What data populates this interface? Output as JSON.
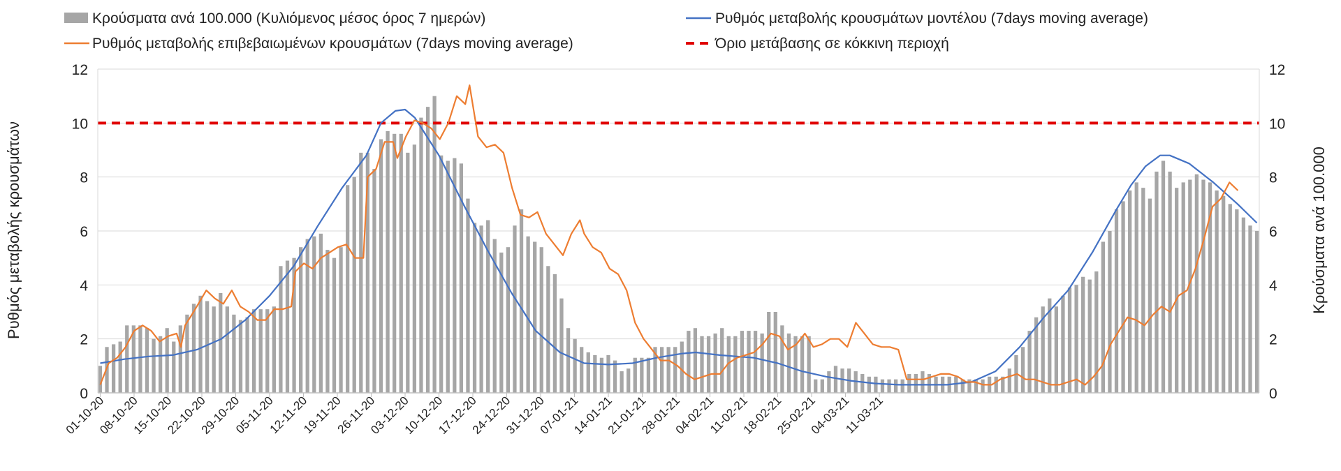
{
  "chart_data": {
    "type": "bar",
    "legend": {
      "bars": "Κρούσματα ανά 100.000 (Κυλιόμενος μέσος όρος 7 ημερών)",
      "model_line": "Ρυθμός μεταβολής κρουσμάτων μοντέλου (7days moving average)",
      "confirmed_line": "Ρυθμός μεταβολής επιβεβαιωμένων κρουσμάτων (7days moving average)",
      "threshold": "Όριο μετάβασης σε κόκκινη περιοχή",
      "placement": "top"
    },
    "ylabel_left": "Ρυθμός μεταβολής κρουσμάτων",
    "ylabel_right": "Κρούσματα ανά 100.000",
    "ylim": [
      0,
      12
    ],
    "yticks": [
      "0",
      "2",
      "4",
      "6",
      "8",
      "10",
      "12"
    ],
    "grid": true,
    "threshold_value": 10,
    "colors": {
      "bars": "#a6a6a6",
      "model_line": "#4472c4",
      "confirmed_line": "#ed7d31",
      "threshold": "#e00000",
      "grid": "#d9d9d9"
    },
    "x_labels": [
      "01-10-20",
      "08-10-20",
      "15-10-20",
      "22-10-20",
      "29-10-20",
      "05-11-20",
      "12-11-20",
      "19-11-20",
      "26-11-20",
      "03-12-20",
      "10-12-20",
      "17-12-20",
      "24-12-20",
      "31-12-20",
      "07-01-21",
      "14-01-21",
      "21-01-21",
      "28-01-21",
      "04-02-21",
      "11-02-21",
      "18-02-21",
      "25-02-21",
      "04-03-21",
      "11-03-21"
    ],
    "bars": [
      1.0,
      1.7,
      1.8,
      1.9,
      2.5,
      2.5,
      2.5,
      2.4,
      2.0,
      2.1,
      2.4,
      1.9,
      2.5,
      2.9,
      3.3,
      3.6,
      3.4,
      3.2,
      3.7,
      3.2,
      2.9,
      2.7,
      2.8,
      3.1,
      3.1,
      3.1,
      3.2,
      4.7,
      4.9,
      5.0,
      5.4,
      5.7,
      5.8,
      5.9,
      5.3,
      5.0,
      5.4,
      7.7,
      8.0,
      8.9,
      8.9,
      8.3,
      9.4,
      9.7,
      9.6,
      9.6,
      8.9,
      9.2,
      10.2,
      10.6,
      11.0,
      8.8,
      8.6,
      8.7,
      8.5,
      7.2,
      6.3,
      6.2,
      6.4,
      5.7,
      5.2,
      5.4,
      6.2,
      6.8,
      5.8,
      5.6,
      5.4,
      4.7,
      4.4,
      3.5,
      2.4,
      2.0,
      1.7,
      1.5,
      1.4,
      1.3,
      1.4,
      1.2,
      0.8,
      0.9,
      1.3,
      1.3,
      1.3,
      1.7,
      1.7,
      1.7,
      1.7,
      1.9,
      2.3,
      2.4,
      2.1,
      2.1,
      2.2,
      2.4,
      2.1,
      2.1,
      2.3,
      2.3,
      2.3,
      2.2,
      3.0,
      3.0,
      2.5,
      2.2,
      2.1,
      2.1,
      2.1,
      0.5,
      0.5,
      0.8,
      1.0,
      0.9,
      0.9,
      0.8,
      0.7,
      0.6,
      0.6,
      0.5,
      0.5,
      0.5,
      0.5,
      0.7,
      0.7,
      0.8,
      0.7,
      0.6,
      0.6,
      0.6,
      0.6,
      0.5,
      0.5,
      0.5,
      0.5,
      0.6,
      0.6,
      0.6,
      0.9,
      1.4,
      1.7,
      2.3,
      2.8,
      3.2,
      3.5,
      3.2,
      3.6,
      3.9,
      4.0,
      4.3,
      4.2,
      4.5,
      5.6,
      6.0,
      6.8,
      7.1,
      7.5,
      7.8,
      7.6,
      7.2,
      8.2,
      8.6,
      8.2,
      7.6,
      7.8,
      7.9,
      8.1,
      7.9,
      7.8,
      7.5,
      7.3,
      7.0,
      6.8,
      6.5,
      6.2,
      6.0
    ],
    "model_line": [
      [
        0,
        1.1
      ],
      [
        5,
        1.25
      ],
      [
        10,
        1.35
      ],
      [
        15,
        1.4
      ],
      [
        20,
        1.6
      ],
      [
        25,
        2.0
      ],
      [
        30,
        2.7
      ],
      [
        35,
        3.6
      ],
      [
        40,
        4.7
      ],
      [
        45,
        6.2
      ],
      [
        50,
        7.6
      ],
      [
        55,
        8.8
      ],
      [
        58,
        10.0
      ],
      [
        61,
        10.45
      ],
      [
        63,
        10.5
      ],
      [
        65,
        10.2
      ],
      [
        70,
        8.8
      ],
      [
        75,
        7.0
      ],
      [
        80,
        5.3
      ],
      [
        85,
        3.7
      ],
      [
        90,
        2.3
      ],
      [
        95,
        1.5
      ],
      [
        100,
        1.1
      ],
      [
        105,
        1.05
      ],
      [
        110,
        1.1
      ],
      [
        115,
        1.3
      ],
      [
        120,
        1.45
      ],
      [
        123,
        1.5
      ],
      [
        128,
        1.4
      ],
      [
        135,
        1.3
      ],
      [
        140,
        1.1
      ],
      [
        145,
        0.8
      ],
      [
        150,
        0.6
      ],
      [
        155,
        0.45
      ],
      [
        160,
        0.35
      ],
      [
        165,
        0.3
      ],
      [
        170,
        0.3
      ],
      [
        175,
        0.3
      ],
      [
        180,
        0.4
      ],
      [
        185,
        0.8
      ],
      [
        190,
        1.7
      ],
      [
        195,
        2.8
      ],
      [
        200,
        3.8
      ],
      [
        205,
        5.2
      ],
      [
        210,
        6.8
      ],
      [
        213,
        7.7
      ],
      [
        216,
        8.4
      ],
      [
        219,
        8.8
      ],
      [
        221,
        8.8
      ],
      [
        225,
        8.5
      ],
      [
        230,
        7.8
      ],
      [
        235,
        7.0
      ],
      [
        239,
        6.3
      ]
    ],
    "confirmed_line": [
      [
        0,
        0.3
      ],
      [
        2,
        1.1
      ],
      [
        4,
        1.3
      ],
      [
        6,
        1.7
      ],
      [
        8,
        2.3
      ],
      [
        10,
        2.5
      ],
      [
        12,
        2.3
      ],
      [
        14,
        1.9
      ],
      [
        16,
        2.1
      ],
      [
        18,
        2.2
      ],
      [
        19,
        1.7
      ],
      [
        20,
        2.5
      ],
      [
        22,
        3.0
      ],
      [
        25,
        3.8
      ],
      [
        27,
        3.5
      ],
      [
        29,
        3.3
      ],
      [
        31,
        3.8
      ],
      [
        33,
        3.2
      ],
      [
        35,
        3.0
      ],
      [
        37,
        2.7
      ],
      [
        39,
        2.7
      ],
      [
        41,
        3.1
      ],
      [
        43,
        3.1
      ],
      [
        45,
        3.2
      ],
      [
        46,
        4.5
      ],
      [
        48,
        4.8
      ],
      [
        50,
        4.6
      ],
      [
        52,
        5.0
      ],
      [
        54,
        5.2
      ],
      [
        56,
        5.4
      ],
      [
        58,
        5.5
      ],
      [
        60,
        5.0
      ],
      [
        62,
        5.0
      ],
      [
        63,
        8.0
      ],
      [
        65,
        8.3
      ],
      [
        67,
        9.3
      ],
      [
        69,
        9.3
      ],
      [
        70,
        8.7
      ],
      [
        72,
        9.5
      ],
      [
        74,
        10.1
      ],
      [
        76,
        10.0
      ],
      [
        78,
        9.8
      ],
      [
        80,
        9.4
      ],
      [
        82,
        10.0
      ],
      [
        84,
        11.0
      ],
      [
        86,
        10.7
      ],
      [
        87,
        11.4
      ],
      [
        89,
        9.5
      ],
      [
        91,
        9.1
      ],
      [
        93,
        9.2
      ],
      [
        95,
        8.9
      ],
      [
        97,
        7.6
      ],
      [
        99,
        6.6
      ],
      [
        101,
        6.5
      ],
      [
        103,
        6.7
      ],
      [
        105,
        5.9
      ],
      [
        107,
        5.5
      ],
      [
        109,
        5.1
      ],
      [
        111,
        5.9
      ],
      [
        113,
        6.4
      ],
      [
        114,
        5.9
      ],
      [
        116,
        5.4
      ],
      [
        118,
        5.2
      ],
      [
        120,
        4.6
      ],
      [
        122,
        4.4
      ],
      [
        124,
        3.8
      ],
      [
        126,
        2.6
      ],
      [
        128,
        2.0
      ],
      [
        130,
        1.6
      ],
      [
        132,
        1.2
      ],
      [
        134,
        1.2
      ],
      [
        136,
        1.0
      ],
      [
        138,
        0.7
      ],
      [
        140,
        0.5
      ],
      [
        142,
        0.6
      ],
      [
        144,
        0.7
      ],
      [
        146,
        0.7
      ],
      [
        148,
        1.1
      ],
      [
        150,
        1.3
      ],
      [
        152,
        1.4
      ],
      [
        154,
        1.5
      ],
      [
        156,
        1.8
      ],
      [
        158,
        2.2
      ],
      [
        160,
        2.1
      ],
      [
        162,
        1.6
      ],
      [
        164,
        1.8
      ],
      [
        166,
        2.2
      ],
      [
        168,
        1.7
      ],
      [
        170,
        1.8
      ],
      [
        172,
        2.0
      ],
      [
        174,
        2.0
      ],
      [
        176,
        1.7
      ],
      [
        178,
        2.6
      ],
      [
        180,
        2.2
      ],
      [
        182,
        1.8
      ],
      [
        184,
        1.7
      ],
      [
        186,
        1.7
      ],
      [
        188,
        1.6
      ],
      [
        190,
        0.5
      ],
      [
        194,
        0.5
      ],
      [
        196,
        0.6
      ],
      [
        198,
        0.7
      ],
      [
        200,
        0.7
      ],
      [
        202,
        0.6
      ],
      [
        204,
        0.4
      ],
      [
        206,
        0.4
      ],
      [
        208,
        0.3
      ],
      [
        210,
        0.3
      ],
      [
        212,
        0.5
      ],
      [
        214,
        0.6
      ],
      [
        216,
        0.7
      ],
      [
        218,
        0.5
      ],
      [
        220,
        0.5
      ],
      [
        222,
        0.4
      ],
      [
        224,
        0.3
      ],
      [
        226,
        0.3
      ],
      [
        228,
        0.4
      ],
      [
        230,
        0.5
      ],
      [
        232,
        0.3
      ],
      [
        234,
        0.6
      ],
      [
        236,
        1.0
      ],
      [
        238,
        1.8
      ],
      [
        240,
        2.3
      ],
      [
        242,
        2.8
      ],
      [
        244,
        2.7
      ],
      [
        246,
        2.5
      ],
      [
        248,
        2.9
      ],
      [
        250,
        3.2
      ],
      [
        252,
        3.0
      ],
      [
        254,
        3.6
      ],
      [
        256,
        3.8
      ],
      [
        258,
        4.6
      ],
      [
        260,
        5.7
      ],
      [
        262,
        6.9
      ],
      [
        264,
        7.2
      ],
      [
        266,
        7.8
      ],
      [
        268,
        7.5
      ]
    ]
  }
}
